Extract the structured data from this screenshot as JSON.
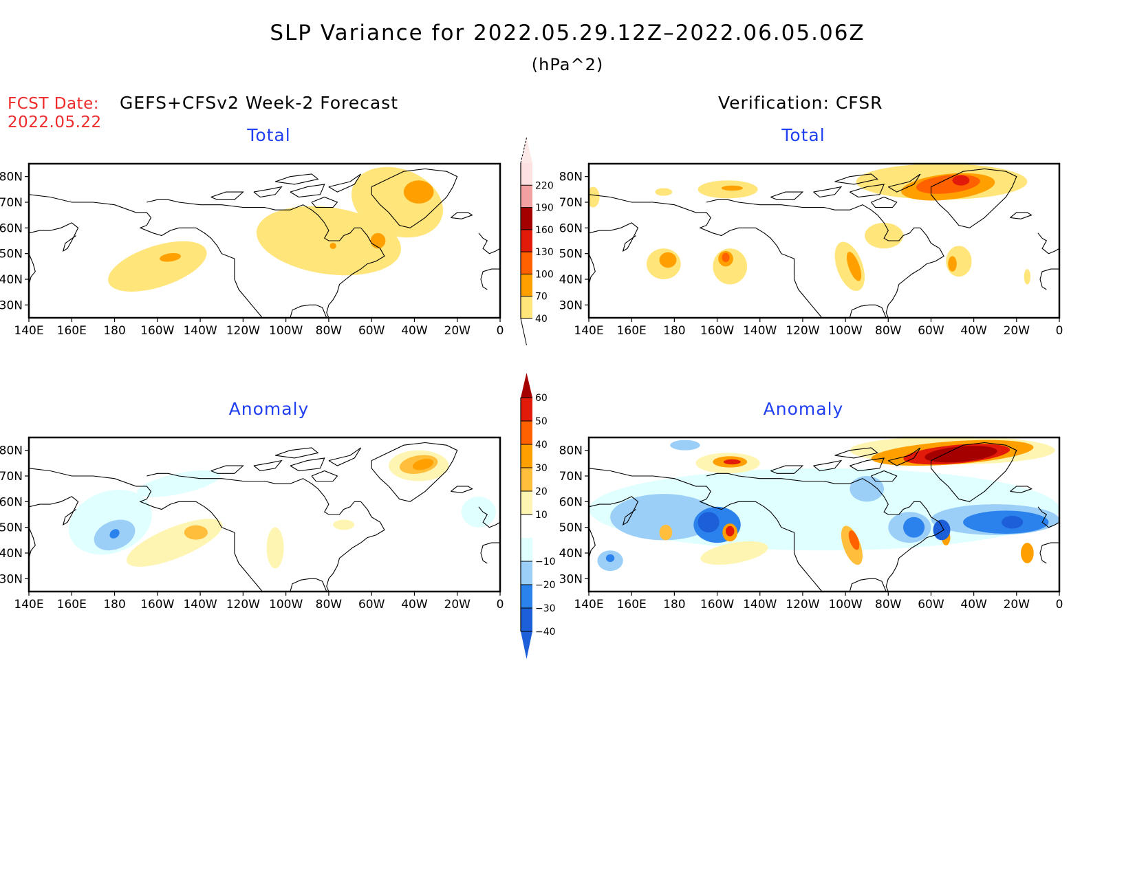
{
  "header": {
    "title": "SLP Variance for 2022.05.29.12Z–2022.06.05.06Z",
    "units": "(hPa^2)",
    "fcst_date_label": "FCST Date:",
    "fcst_date_value": "2022.05.22",
    "left_heading": "GEFS+CFSv2 Week-2 Forecast",
    "right_heading": "Verification: CFSR"
  },
  "colors": {
    "title_text": "#000000",
    "fcst_text": "#ee2a2a",
    "panel_title": "#1f3ff0"
  },
  "chart_data": [
    {
      "type": "heatmap",
      "id": "forecast-total",
      "title": "Total",
      "xlabel": "",
      "ylabel": "",
      "x_ticks": [
        "140E",
        "160E",
        "180",
        "160W",
        "140W",
        "120W",
        "100W",
        "80W",
        "60W",
        "40W",
        "20W",
        "0"
      ],
      "y_ticks": [
        "80N",
        "70N",
        "60N",
        "50N",
        "40N",
        "30N"
      ],
      "lon_range": [
        140,
        360
      ],
      "lat_range": [
        25,
        85
      ],
      "colorbar": "total",
      "features": [
        {
          "lon": 200,
          "lat": 45,
          "rlon": 24,
          "rlat": 8,
          "rot": -18,
          "level": 40
        },
        {
          "lon": 206,
          "lat": 48.5,
          "rlon": 5,
          "rlat": 1.6,
          "rot": -8,
          "level": 70
        },
        {
          "lon": 280,
          "lat": 55,
          "rlon": 34,
          "rlat": 13,
          "rot": 8,
          "level": 40
        },
        {
          "lon": 312,
          "lat": 70,
          "rlon": 22,
          "rlat": 13,
          "rot": 20,
          "level": 40
        },
        {
          "lon": 322,
          "lat": 74,
          "rlon": 7,
          "rlat": 4.5,
          "rot": 0,
          "level": 70
        },
        {
          "lon": 303,
          "lat": 55,
          "rlon": 3.5,
          "rlat": 3,
          "rot": 0,
          "level": 70
        },
        {
          "lon": 282,
          "lat": 53,
          "rlon": 1.5,
          "rlat": 1.2,
          "rot": 0,
          "level": 70
        }
      ]
    },
    {
      "type": "heatmap",
      "id": "verification-total",
      "title": "Total",
      "xlabel": "",
      "ylabel": "",
      "x_ticks": [
        "140E",
        "160E",
        "180",
        "160W",
        "140W",
        "120W",
        "100W",
        "80W",
        "60W",
        "40W",
        "20W",
        "0"
      ],
      "y_ticks": [
        "80N",
        "70N",
        "60N",
        "50N",
        "40N",
        "30N"
      ],
      "lon_range": [
        140,
        360
      ],
      "lat_range": [
        25,
        85
      ],
      "colorbar": "total",
      "features": [
        {
          "lon": 175,
          "lat": 46,
          "rlon": 8,
          "rlat": 6,
          "rot": 0,
          "level": 40
        },
        {
          "lon": 177,
          "lat": 47.5,
          "rlon": 4,
          "rlat": 3,
          "rot": 0,
          "level": 70
        },
        {
          "lon": 206,
          "lat": 45,
          "rlon": 8,
          "rlat": 7,
          "rot": 0,
          "level": 40
        },
        {
          "lon": 204,
          "lat": 48,
          "rlon": 3.5,
          "rlat": 3,
          "rot": 0,
          "level": 70
        },
        {
          "lon": 204,
          "lat": 48.5,
          "rlon": 1.8,
          "rlat": 1.8,
          "rot": 0,
          "level": 100
        },
        {
          "lon": 205,
          "lat": 75,
          "rlon": 14,
          "rlat": 3.5,
          "rot": 0,
          "level": 40
        },
        {
          "lon": 207,
          "lat": 75.5,
          "rlon": 5,
          "rlat": 1,
          "rot": 0,
          "level": 70
        },
        {
          "lon": 175,
          "lat": 74,
          "rlon": 4,
          "rlat": 1.5,
          "rot": 0,
          "level": 40
        },
        {
          "lon": 142,
          "lat": 72,
          "rlon": 3,
          "rlat": 4,
          "rot": 0,
          "level": 40
        },
        {
          "lon": 262,
          "lat": 45,
          "rlon": 6,
          "rlat": 10,
          "rot": -20,
          "level": 40
        },
        {
          "lon": 264,
          "lat": 45,
          "rlon": 2.5,
          "rlat": 6,
          "rot": -20,
          "level": 70
        },
        {
          "lon": 278,
          "lat": 57,
          "rlon": 9,
          "rlat": 5,
          "rot": 0,
          "level": 40
        },
        {
          "lon": 313,
          "lat": 47,
          "rlon": 6,
          "rlat": 6,
          "rot": 0,
          "level": 40
        },
        {
          "lon": 310,
          "lat": 46,
          "rlon": 2,
          "rlat": 3,
          "rot": 0,
          "level": 70
        },
        {
          "lon": 305,
          "lat": 78,
          "rlon": 40,
          "rlat": 7,
          "rot": 0,
          "level": 40
        },
        {
          "lon": 308,
          "lat": 76,
          "rlon": 22,
          "rlat": 5,
          "rot": -6,
          "level": 70
        },
        {
          "lon": 308,
          "lat": 77,
          "rlon": 15,
          "rlat": 3.5,
          "rot": -6,
          "level": 100
        },
        {
          "lon": 314,
          "lat": 78.5,
          "rlon": 4,
          "rlat": 2,
          "rot": 0,
          "level": 130
        },
        {
          "lon": 345,
          "lat": 41,
          "rlon": 1.5,
          "rlat": 3,
          "rot": 0,
          "level": 40
        }
      ]
    },
    {
      "type": "heatmap",
      "id": "forecast-anomaly",
      "title": "Anomaly",
      "xlabel": "",
      "ylabel": "",
      "x_ticks": [
        "140E",
        "160E",
        "180",
        "160W",
        "140W",
        "120W",
        "100W",
        "80W",
        "60W",
        "40W",
        "20W",
        "0"
      ],
      "y_ticks": [
        "80N",
        "70N",
        "60N",
        "50N",
        "40N",
        "30N"
      ],
      "lon_range": [
        140,
        360
      ],
      "lat_range": [
        25,
        85
      ],
      "colorbar": "anomaly",
      "features": [
        {
          "lon": 178,
          "lat": 52,
          "rlon": 20,
          "rlat": 12,
          "rot": -20,
          "level": -10
        },
        {
          "lon": 210,
          "lat": 67,
          "rlon": 20,
          "rlat": 4,
          "rot": -12,
          "level": -10
        },
        {
          "lon": 180,
          "lat": 47,
          "rlon": 10,
          "rlat": 5.5,
          "rot": -22,
          "level": -20
        },
        {
          "lon": 180,
          "lat": 47.5,
          "rlon": 2.5,
          "rlat": 1.6,
          "rot": -40,
          "level": -30
        },
        {
          "lon": 208,
          "lat": 44,
          "rlon": 24,
          "rlat": 6,
          "rot": -22,
          "level": 10
        },
        {
          "lon": 218,
          "lat": 48,
          "rlon": 5.5,
          "rlat": 2.8,
          "rot": 0,
          "level": 20
        },
        {
          "lon": 255,
          "lat": 42,
          "rlon": 4,
          "rlat": 8,
          "rot": 0,
          "level": 10
        },
        {
          "lon": 322,
          "lat": 74,
          "rlon": 14,
          "rlat": 6,
          "rot": 0,
          "level": 10
        },
        {
          "lon": 322,
          "lat": 74.5,
          "rlon": 9,
          "rlat": 3.5,
          "rot": -10,
          "level": 20
        },
        {
          "lon": 324,
          "lat": 74.5,
          "rlon": 5,
          "rlat": 2,
          "rot": -15,
          "level": 30
        },
        {
          "lon": 350,
          "lat": 56,
          "rlon": 8,
          "rlat": 6,
          "rot": 0,
          "level": -10
        },
        {
          "lon": 287,
          "lat": 51,
          "rlon": 5,
          "rlat": 2,
          "rot": 0,
          "level": 10
        }
      ]
    },
    {
      "type": "heatmap",
      "id": "verification-anomaly",
      "title": "Anomaly",
      "xlabel": "",
      "ylabel": "",
      "x_ticks": [
        "140E",
        "160E",
        "180",
        "160W",
        "140W",
        "120W",
        "100W",
        "80W",
        "60W",
        "40W",
        "20W",
        "0"
      ],
      "y_ticks": [
        "80N",
        "70N",
        "60N",
        "50N",
        "40N",
        "30N"
      ],
      "lon_range": [
        140,
        360
      ],
      "lat_range": [
        25,
        85
      ],
      "colorbar": "anomaly",
      "features": [
        {
          "lon": 250,
          "lat": 57,
          "rlon": 110,
          "rlat": 16,
          "rot": 0,
          "level": -10
        },
        {
          "lon": 175,
          "lat": 54,
          "rlon": 25,
          "rlat": 9,
          "rot": 0,
          "level": -20
        },
        {
          "lon": 200,
          "lat": 51,
          "rlon": 11,
          "rlat": 7,
          "rot": 0,
          "level": -30
        },
        {
          "lon": 196,
          "lat": 52,
          "rlon": 5,
          "rlat": 4,
          "rot": 0,
          "level": -40
        },
        {
          "lon": 150,
          "lat": 37,
          "rlon": 6,
          "rlat": 4,
          "rot": 0,
          "level": -20
        },
        {
          "lon": 150,
          "lat": 38,
          "rlon": 2,
          "rlat": 1.5,
          "rot": 0,
          "level": -30
        },
        {
          "lon": 185,
          "lat": 82,
          "rlon": 7,
          "rlat": 2,
          "rot": 0,
          "level": -20
        },
        {
          "lon": 270,
          "lat": 65,
          "rlon": 8,
          "rlat": 5,
          "rot": 0,
          "level": -20
        },
        {
          "lon": 290,
          "lat": 50,
          "rlon": 10,
          "rlat": 6,
          "rot": 0,
          "level": -20
        },
        {
          "lon": 292,
          "lat": 50,
          "rlon": 5,
          "rlat": 4,
          "rot": 0,
          "level": -30
        },
        {
          "lon": 330,
          "lat": 53,
          "rlon": 30,
          "rlat": 6,
          "rot": 0,
          "level": -20
        },
        {
          "lon": 335,
          "lat": 52,
          "rlon": 20,
          "rlat": 4.5,
          "rot": 0,
          "level": -30
        },
        {
          "lon": 338,
          "lat": 52,
          "rlon": 5,
          "rlat": 2.5,
          "rot": 0,
          "level": -40
        },
        {
          "lon": 305,
          "lat": 49,
          "rlon": 4,
          "rlat": 4,
          "rot": 0,
          "level": -40
        },
        {
          "lon": 206,
          "lat": 48,
          "rlon": 3.5,
          "rlat": 3.5,
          "rot": 0,
          "level": 30
        },
        {
          "lon": 206,
          "lat": 48.5,
          "rlon": 2,
          "rlat": 2,
          "rot": 0,
          "level": 50
        },
        {
          "lon": 208,
          "lat": 40,
          "rlon": 16,
          "rlat": 4,
          "rot": -10,
          "level": 10
        },
        {
          "lon": 176,
          "lat": 48,
          "rlon": 3,
          "rlat": 3,
          "rot": 0,
          "level": 20
        },
        {
          "lon": 205,
          "lat": 75,
          "rlon": 15,
          "rlat": 4,
          "rot": 0,
          "level": 10
        },
        {
          "lon": 206,
          "lat": 75.5,
          "rlon": 8,
          "rlat": 2.2,
          "rot": 0,
          "level": 30
        },
        {
          "lon": 207,
          "lat": 75.5,
          "rlon": 4,
          "rlat": 1,
          "rot": 0,
          "level": 50
        },
        {
          "lon": 263,
          "lat": 43,
          "rlon": 4,
          "rlat": 8,
          "rot": -20,
          "level": 20
        },
        {
          "lon": 264,
          "lat": 45,
          "rlon": 2,
          "rlat": 4,
          "rot": -20,
          "level": 40
        },
        {
          "lon": 307,
          "lat": 46,
          "rlon": 2,
          "rlat": 3,
          "rot": 0,
          "level": 30
        },
        {
          "lon": 345,
          "lat": 40,
          "rlon": 3,
          "rlat": 4,
          "rot": 0,
          "level": 30
        },
        {
          "lon": 310,
          "lat": 80,
          "rlon": 48,
          "rlat": 5.5,
          "rot": 0,
          "level": 10
        },
        {
          "lon": 310,
          "lat": 79,
          "rlon": 38,
          "rlat": 4.5,
          "rot": -4,
          "level": 30
        },
        {
          "lon": 312,
          "lat": 78.5,
          "rlon": 25,
          "rlat": 3.6,
          "rot": -5,
          "level": 50
        },
        {
          "lon": 314,
          "lat": 78.5,
          "rlon": 17,
          "rlat": 3,
          "rot": -5,
          "level": 60
        }
      ]
    }
  ],
  "colorbars": {
    "total": {
      "levels": [
        "40",
        "70",
        "100",
        "130",
        "160",
        "190",
        "220"
      ],
      "colors": [
        "#ffe57a",
        "#ffa000",
        "#ff6000",
        "#e11a0a",
        "#a50000",
        "#f2a0a0",
        "#fde0e0"
      ],
      "extend_top_color": "#fde8e8",
      "extend_bottom_color": "#ffffff"
    },
    "anomaly": {
      "levels": [
        "−40",
        "−30",
        "−20",
        "−10",
        "10",
        "20",
        "30",
        "40",
        "50",
        "60"
      ],
      "colors": [
        "#1c5fd8",
        "#2b82ec",
        "#9ccff8",
        "#e0ffff",
        "#ffffff",
        "#fff5b3",
        "#ffbf3c",
        "#ffa000",
        "#ff6000",
        "#e11a0a"
      ],
      "extend_top_color": "#a50000",
      "extend_bottom_color": "#1c5fd8"
    }
  }
}
